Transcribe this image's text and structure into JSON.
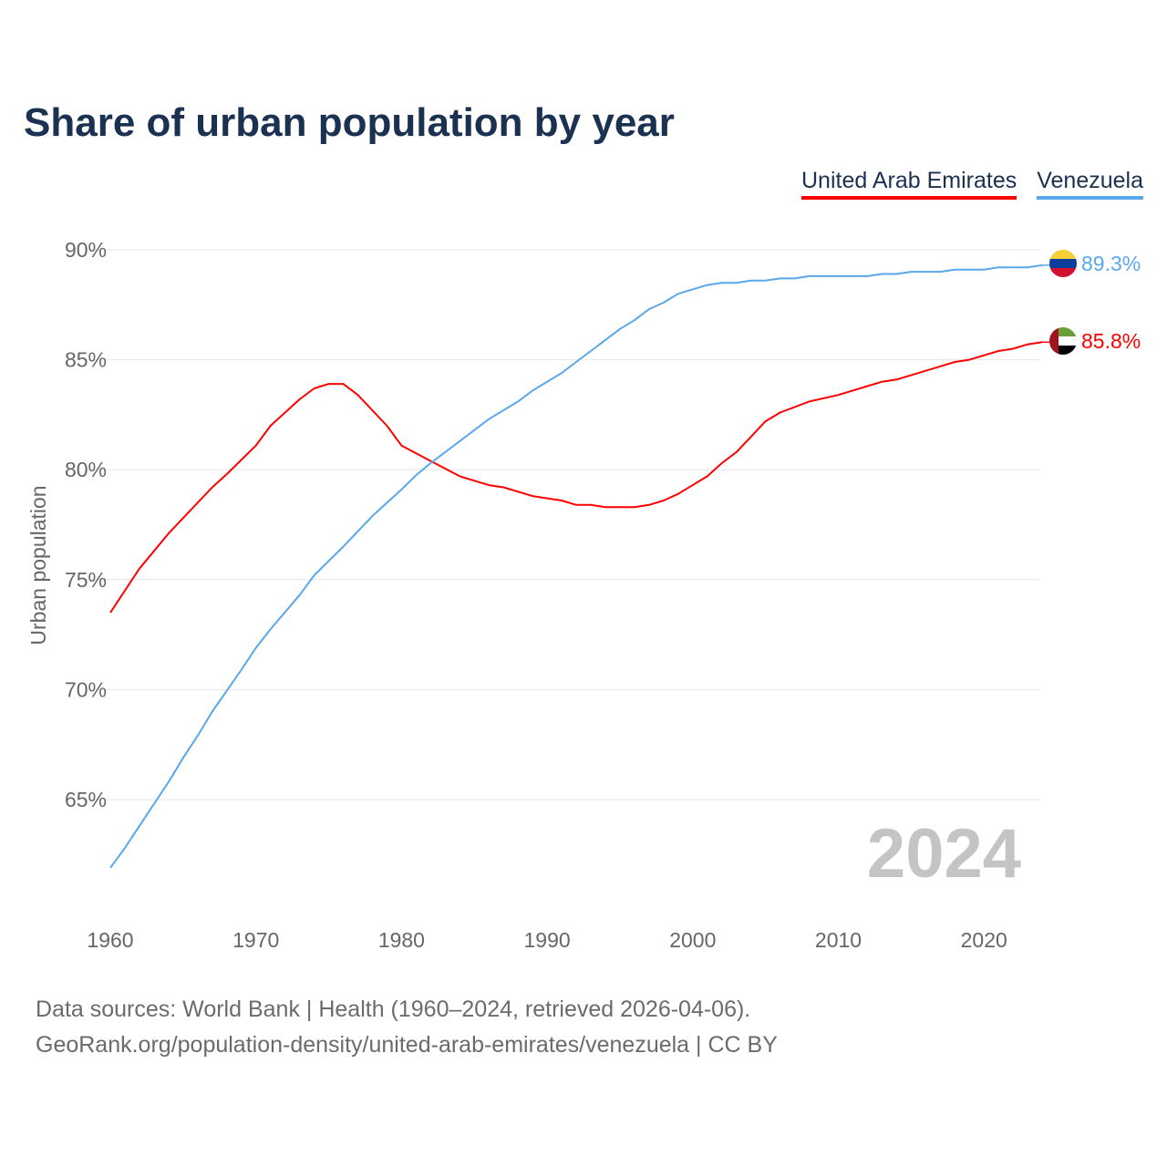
{
  "title": "Share of urban population by year",
  "footer": {
    "line1": "Data sources: World Bank | Health (1960–2024, retrieved 2026-04-06).",
    "line2": "GeoRank.org/population-density/united-arab-emirates/venezuela | CC BY"
  },
  "chart_data": {
    "type": "line",
    "title": "Share of urban population by year",
    "xlabel": "",
    "ylabel": "Urban population",
    "xlim": [
      1960,
      2024
    ],
    "ylim": [
      60,
      92
    ],
    "x_ticks": [
      "1960",
      "1970",
      "1980",
      "1990",
      "2000",
      "2010",
      "2020"
    ],
    "y_ticks": [
      "65%",
      "70%",
      "75%",
      "80%",
      "85%",
      "90%"
    ],
    "grid": true,
    "legend_position": "top-right",
    "current_year_label": "2024",
    "series": [
      {
        "name": "United Arab Emirates",
        "color": "#ff0000",
        "end_label": "85.8%",
        "flag": "uae-flag",
        "x": [
          1960,
          1962,
          1964,
          1967,
          1968,
          1970,
          1971,
          1973,
          1974,
          1975,
          1976,
          1977,
          1979,
          1980,
          1982,
          1984,
          1986,
          1987,
          1989,
          1991,
          1992,
          1993,
          1994,
          1996,
          1997,
          1998,
          1999,
          2001,
          2002,
          2003,
          2004,
          2005,
          2006,
          2008,
          2010,
          2012,
          2013,
          2014,
          2016,
          2018,
          2019,
          2021,
          2022,
          2023,
          2024
        ],
        "y": [
          73.5,
          75.5,
          77.1,
          79.2,
          79.8,
          81.1,
          82.0,
          83.2,
          83.7,
          83.9,
          83.9,
          83.4,
          82.0,
          81.1,
          80.4,
          79.7,
          79.3,
          79.2,
          78.8,
          78.6,
          78.4,
          78.4,
          78.3,
          78.3,
          78.4,
          78.6,
          78.9,
          79.7,
          80.3,
          80.8,
          81.5,
          82.2,
          82.6,
          83.1,
          83.4,
          83.8,
          84.0,
          84.1,
          84.5,
          84.9,
          85.0,
          85.4,
          85.5,
          85.7,
          85.8
        ]
      },
      {
        "name": "Venezuela",
        "color": "#5aa7ea",
        "end_label": "89.3%",
        "flag": "venezuela-flag",
        "x": [
          1960,
          1961,
          1962,
          1964,
          1965,
          1966,
          1967,
          1969,
          1970,
          1971,
          1973,
          1974,
          1976,
          1978,
          1980,
          1981,
          1982,
          1984,
          1986,
          1988,
          1989,
          1991,
          1992,
          1993,
          1994,
          1995,
          1996,
          1997,
          1998,
          1999,
          2000,
          2001,
          2002,
          2003,
          2004,
          2005,
          2006,
          2007,
          2008,
          2012,
          2013,
          2014,
          2015,
          2017,
          2018,
          2020,
          2021,
          2023,
          2024
        ],
        "y": [
          61.9,
          62.8,
          63.8,
          65.8,
          66.9,
          67.9,
          69.0,
          70.9,
          71.9,
          72.75,
          74.3,
          75.2,
          76.5,
          77.9,
          79.1,
          79.75,
          80.3,
          81.3,
          82.3,
          83.1,
          83.6,
          84.4,
          84.9,
          85.4,
          85.9,
          86.4,
          86.8,
          87.3,
          87.6,
          88.0,
          88.2,
          88.4,
          88.5,
          88.5,
          88.6,
          88.6,
          88.7,
          88.7,
          88.8,
          88.8,
          88.9,
          88.9,
          89.0,
          89.0,
          89.1,
          89.1,
          89.2,
          89.2,
          89.3
        ]
      }
    ]
  }
}
